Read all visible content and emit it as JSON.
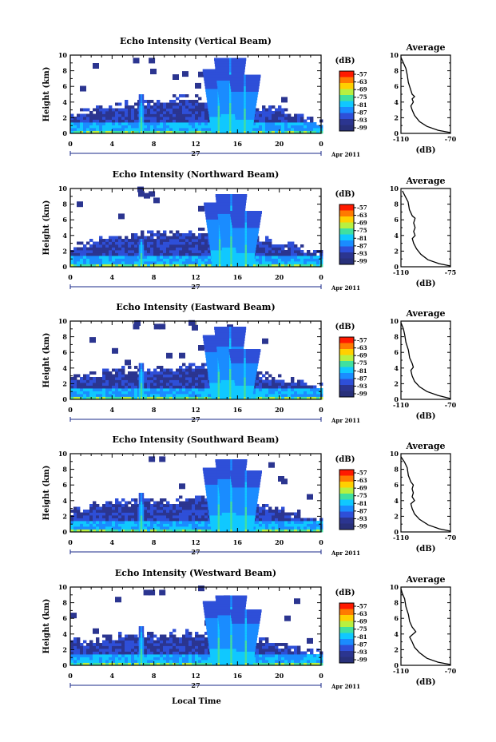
{
  "figure": {
    "xlabel": "Local Time",
    "date_day": "27",
    "date_month_year": "Apr 2011",
    "colorbar_unit": "(dB)",
    "colorbar_ticks": [
      "-57",
      "-63",
      "-69",
      "-75",
      "-81",
      "-87",
      "-93",
      "-99"
    ],
    "colorbar_colors": [
      "#ff1a00",
      "#ff7a00",
      "#ffd000",
      "#b8f040",
      "#40e0a0",
      "#10c8ff",
      "#1a8cff",
      "#2e4fd8",
      "#2b3590",
      "#28307a"
    ],
    "echo_color_scale": [
      "#2b3590",
      "#2e4fd8",
      "#1a8cff",
      "#10c8ff",
      "#40e0a0",
      "#b8f040",
      "#ffd000"
    ],
    "average_title": "Average",
    "average_xlabel": "(dB)",
    "ylabel": "Height (km)",
    "x_ticks": [
      "0",
      "4",
      "8",
      "12",
      "16",
      "20",
      "0"
    ],
    "y_ticks": [
      "0",
      "2",
      "4",
      "6",
      "8",
      "10"
    ]
  },
  "chart_data": [
    {
      "type": "heatmap",
      "title": "Echo Intensity (Vertical Beam)",
      "xlabel": "Local Time",
      "ylabel": "Height (km)",
      "xlim": [
        0,
        24
      ],
      "ylim": [
        0,
        10
      ],
      "colorbar_range_db": [
        -99,
        -57
      ],
      "features": {
        "background_layer_top_km": [
          [
            0,
            2.4
          ],
          [
            4,
            3.5
          ],
          [
            8,
            4.3
          ],
          [
            12,
            4.6
          ],
          [
            16,
            4.0
          ],
          [
            20,
            3.2
          ],
          [
            24,
            1.6
          ]
        ],
        "convective_columns": [
          {
            "time": 6.8,
            "top_km": 4.7
          },
          {
            "time": 14.2,
            "top_km": 7.9
          },
          {
            "time": 15.3,
            "top_km": 9.3
          },
          {
            "time": 16.7,
            "top_km": 7.2
          }
        ],
        "surface_layer_db": -75
      },
      "average_profile": {
        "title": "Average",
        "xlabel": "(dB)",
        "x_ticks": [
          -110,
          -70
        ],
        "xlim": [
          -110,
          -70
        ],
        "ylim": [
          0,
          10
        ],
        "points": [
          [
            -70,
            0.1
          ],
          [
            -80,
            0.4
          ],
          [
            -89,
            0.9
          ],
          [
            -95,
            1.5
          ],
          [
            -99,
            2.3
          ],
          [
            -101,
            3.0
          ],
          [
            -102,
            3.5
          ],
          [
            -100,
            4.0
          ],
          [
            -101,
            4.4
          ],
          [
            -99,
            4.7
          ],
          [
            -101,
            5.0
          ],
          [
            -102,
            5.5
          ],
          [
            -104,
            6.5
          ],
          [
            -105,
            7.5
          ],
          [
            -106,
            8.3
          ],
          [
            -108,
            9.0
          ],
          [
            -110,
            9.7
          ]
        ]
      }
    },
    {
      "type": "heatmap",
      "title": "Echo Intensity (Northward Beam)",
      "xlabel": "Local Time",
      "ylabel": "Height (km)",
      "xlim": [
        0,
        24
      ],
      "ylim": [
        0,
        10
      ],
      "colorbar_range_db": [
        -99,
        -57
      ],
      "features": {
        "background_layer_top_km": [
          [
            0,
            2.6
          ],
          [
            4,
            3.9
          ],
          [
            8,
            4.3
          ],
          [
            12,
            4.6
          ],
          [
            16,
            4.0
          ],
          [
            20,
            3.2
          ],
          [
            24,
            1.6
          ]
        ],
        "convective_columns": [
          {
            "time": 6.8,
            "top_km": 3.5
          },
          {
            "time": 14.3,
            "top_km": 8.0
          },
          {
            "time": 15.4,
            "top_km": 9.2
          },
          {
            "time": 16.8,
            "top_km": 6.8
          }
        ],
        "surface_layer_db": -75
      },
      "average_profile": {
        "title": "Average",
        "xlabel": "(dB)",
        "x_ticks": [
          -110,
          -75
        ],
        "xlim": [
          -110,
          -75
        ],
        "ylim": [
          0,
          10
        ],
        "points": [
          [
            -75,
            0.1
          ],
          [
            -83,
            0.4
          ],
          [
            -91,
            0.9
          ],
          [
            -96,
            1.6
          ],
          [
            -99,
            2.3
          ],
          [
            -101,
            3.0
          ],
          [
            -102,
            3.6
          ],
          [
            -100,
            4.0
          ],
          [
            -101,
            4.5
          ],
          [
            -100,
            5.0
          ],
          [
            -101,
            5.6
          ],
          [
            -100,
            6.2
          ],
          [
            -102,
            6.5
          ],
          [
            -104,
            7.3
          ],
          [
            -105,
            8.3
          ],
          [
            -107,
            9.0
          ],
          [
            -109,
            9.7
          ]
        ]
      }
    },
    {
      "type": "heatmap",
      "title": "Echo Intensity (Eastward Beam)",
      "xlabel": "Local Time",
      "ylabel": "Height (km)",
      "xlim": [
        0,
        24
      ],
      "ylim": [
        0,
        10
      ],
      "colorbar_range_db": [
        -99,
        -57
      ],
      "features": {
        "background_layer_top_km": [
          [
            0,
            3.0
          ],
          [
            4,
            3.8
          ],
          [
            8,
            3.9
          ],
          [
            12,
            4.3
          ],
          [
            16,
            3.8
          ],
          [
            20,
            2.8
          ],
          [
            24,
            1.6
          ]
        ],
        "convective_columns": [
          {
            "time": 6.8,
            "top_km": 4.5
          },
          {
            "time": 14.2,
            "top_km": 8.0
          },
          {
            "time": 15.3,
            "top_km": 9.0
          },
          {
            "time": 16.7,
            "top_km": 6.2
          }
        ],
        "surface_layer_db": -75
      },
      "average_profile": {
        "title": "Average",
        "xlabel": "(dB)",
        "x_ticks": [
          -110,
          -70
        ],
        "xlim": [
          -110,
          -70
        ],
        "ylim": [
          0,
          10
        ],
        "points": [
          [
            -70,
            0.1
          ],
          [
            -80,
            0.5
          ],
          [
            -89,
            1.0
          ],
          [
            -95,
            1.6
          ],
          [
            -99,
            2.3
          ],
          [
            -101,
            3.0
          ],
          [
            -102,
            3.7
          ],
          [
            -100,
            4.1
          ],
          [
            -101,
            4.6
          ],
          [
            -103,
            5.3
          ],
          [
            -104,
            6.3
          ],
          [
            -106,
            7.3
          ],
          [
            -107,
            8.3
          ],
          [
            -108,
            9.0
          ],
          [
            -110,
            9.8
          ]
        ]
      }
    },
    {
      "type": "heatmap",
      "title": "Echo Intensity (Southward Beam)",
      "xlabel": "Local Time",
      "ylabel": "Height (km)",
      "xlim": [
        0,
        24
      ],
      "ylim": [
        0,
        10
      ],
      "colorbar_range_db": [
        -99,
        -57
      ],
      "features": {
        "background_layer_top_km": [
          [
            0,
            2.8
          ],
          [
            4,
            3.9
          ],
          [
            8,
            4.0
          ],
          [
            12,
            4.4
          ],
          [
            16,
            4.0
          ],
          [
            20,
            2.9
          ],
          [
            24,
            1.6
          ]
        ],
        "convective_columns": [
          {
            "time": 6.8,
            "top_km": 4.7
          },
          {
            "time": 14.2,
            "top_km": 8.0
          },
          {
            "time": 15.4,
            "top_km": 9.0
          },
          {
            "time": 16.8,
            "top_km": 7.5
          }
        ],
        "surface_layer_db": -75
      },
      "average_profile": {
        "title": "Average",
        "xlabel": "(dB)",
        "x_ticks": [
          -110,
          -70
        ],
        "xlim": [
          -110,
          -70
        ],
        "ylim": [
          0,
          10
        ],
        "points": [
          [
            -70,
            0.1
          ],
          [
            -79,
            0.4
          ],
          [
            -88,
            0.9
          ],
          [
            -95,
            1.6
          ],
          [
            -99,
            2.3
          ],
          [
            -101,
            3.0
          ],
          [
            -102,
            3.6
          ],
          [
            -99,
            4.0
          ],
          [
            -101,
            4.5
          ],
          [
            -100,
            5.0
          ],
          [
            -101,
            5.5
          ],
          [
            -100,
            6.0
          ],
          [
            -102,
            6.4
          ],
          [
            -104,
            7.2
          ],
          [
            -105,
            8.2
          ],
          [
            -107,
            8.9
          ],
          [
            -110,
            9.6
          ]
        ]
      }
    },
    {
      "type": "heatmap",
      "title": "Echo Intensity (Westward Beam)",
      "xlabel": "Local Time",
      "ylabel": "Height (km)",
      "xlim": [
        0,
        24
      ],
      "ylim": [
        0,
        10
      ],
      "colorbar_range_db": [
        -99,
        -57
      ],
      "features": {
        "background_layer_top_km": [
          [
            0,
            3.0
          ],
          [
            4,
            3.8
          ],
          [
            8,
            4.0
          ],
          [
            12,
            4.3
          ],
          [
            16,
            3.8
          ],
          [
            20,
            2.9
          ],
          [
            24,
            1.6
          ]
        ],
        "convective_columns": [
          {
            "time": 6.8,
            "top_km": 4.9
          },
          {
            "time": 14.2,
            "top_km": 8.0
          },
          {
            "time": 15.4,
            "top_km": 8.8
          },
          {
            "time": 16.8,
            "top_km": 7.0
          }
        ],
        "surface_layer_db": -75
      },
      "average_profile": {
        "title": "Average",
        "xlabel": "(dB)",
        "x_ticks": [
          -110,
          -70
        ],
        "xlim": [
          -110,
          -70
        ],
        "ylim": [
          0,
          10
        ],
        "points": [
          [
            -70,
            0.1
          ],
          [
            -80,
            0.4
          ],
          [
            -89,
            0.9
          ],
          [
            -95,
            1.6
          ],
          [
            -99,
            2.3
          ],
          [
            -101,
            3.0
          ],
          [
            -103,
            3.6
          ],
          [
            -98,
            4.3
          ],
          [
            -101,
            4.9
          ],
          [
            -103,
            5.6
          ],
          [
            -104,
            6.5
          ],
          [
            -106,
            7.5
          ],
          [
            -107,
            8.5
          ],
          [
            -109,
            9.2
          ],
          [
            -110,
            9.8
          ]
        ]
      }
    }
  ]
}
